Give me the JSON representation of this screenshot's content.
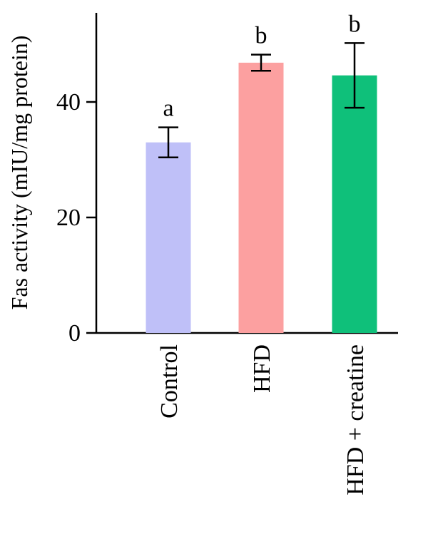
{
  "chart_data": {
    "type": "bar",
    "title": "",
    "xlabel": "",
    "ylabel": "Fas activity (mIU/mg protein)",
    "ylim": [
      0,
      55
    ],
    "yticks": [
      0,
      20,
      40
    ],
    "grid": false,
    "legend": "none",
    "categories": [
      "Control",
      "HFD",
      "HFD + creatine"
    ],
    "values": [
      33,
      46.8,
      44.6
    ],
    "error": [
      2.6,
      1.4,
      5.6
    ],
    "significance": [
      "a",
      "b",
      "b"
    ],
    "colors": [
      "#bfc0f8",
      "#fca0a0",
      "#0fc07a"
    ]
  }
}
